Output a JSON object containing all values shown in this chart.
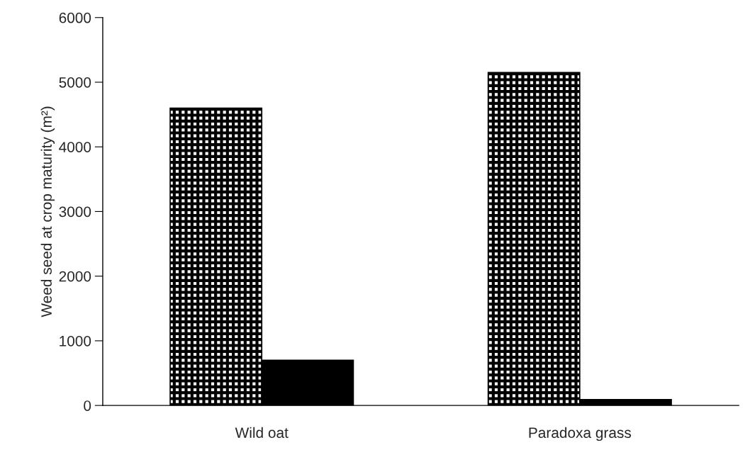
{
  "chart_data": {
    "type": "bar",
    "ylabel": "Weed seed at crop maturity (m²)",
    "categories": [
      "Wild oat",
      "Paradoxa grass"
    ],
    "series": [
      {
        "color": "#000000",
        "values": [
          4600,
          5150
        ]
      },
      {
        "color": "#000000",
        "values": [
          700,
          90
        ]
      }
    ],
    "ylim": [
      0,
      6000
    ],
    "yticks": [
      0,
      1000,
      2000,
      3000,
      4000,
      5000,
      6000
    ],
    "grid": false
  }
}
